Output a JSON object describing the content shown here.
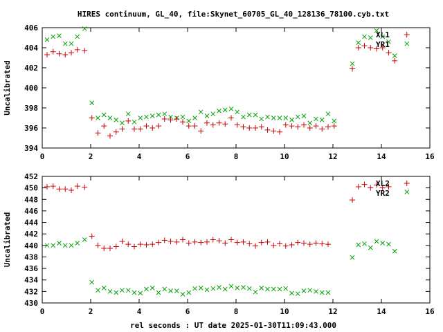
{
  "title": "HIRES continuum, GL_40, file:Skynet_60705_GL_40_128136_78100.cyb.txt",
  "xlabel": "rel seconds : UT date 2025-01-30T11:09:43.000",
  "colors": {
    "red": "#cc0000",
    "green": "#00a000"
  },
  "chart_data": [
    {
      "type": "scatter",
      "name": "top-panel",
      "ylabel": "Uncalibrated",
      "xlim": [
        0,
        16
      ],
      "ylim": [
        394,
        406
      ],
      "xticks": [
        "0",
        "2",
        "4",
        "6",
        "8",
        "10",
        "12",
        "14",
        "16"
      ],
      "yticks": [
        "394",
        "396",
        "398",
        "400",
        "402",
        "404",
        "406"
      ],
      "legend": "top-right",
      "series": [
        {
          "name": "XL1",
          "marker": "x",
          "color": "#00a000",
          "points": [
            [
              0.2,
              404.8
            ],
            [
              0.45,
              405.1
            ],
            [
              0.7,
              405.2
            ],
            [
              0.95,
              404.4
            ],
            [
              1.2,
              404.4
            ],
            [
              1.45,
              405.1
            ],
            [
              1.75,
              405.9
            ],
            [
              2.05,
              398.5
            ],
            [
              2.3,
              397.0
            ],
            [
              2.55,
              397.3
            ],
            [
              2.8,
              397.0
            ],
            [
              3.05,
              396.8
            ],
            [
              3.3,
              396.5
            ],
            [
              3.55,
              397.4
            ],
            [
              3.8,
              396.6
            ],
            [
              4.05,
              397.0
            ],
            [
              4.3,
              397.1
            ],
            [
              4.55,
              397.2
            ],
            [
              4.8,
              397.3
            ],
            [
              5.05,
              397.4
            ],
            [
              5.3,
              397.1
            ],
            [
              5.55,
              397.0
            ],
            [
              5.8,
              397.1
            ],
            [
              6.05,
              396.7
            ],
            [
              6.3,
              397.0
            ],
            [
              6.55,
              397.6
            ],
            [
              6.8,
              397.2
            ],
            [
              7.05,
              397.4
            ],
            [
              7.3,
              397.7
            ],
            [
              7.55,
              397.8
            ],
            [
              7.8,
              397.9
            ],
            [
              8.05,
              397.6
            ],
            [
              8.3,
              397.1
            ],
            [
              8.55,
              397.3
            ],
            [
              8.8,
              397.3
            ],
            [
              9.05,
              396.9
            ],
            [
              9.3,
              397.1
            ],
            [
              9.55,
              397.0
            ],
            [
              9.8,
              397.0
            ],
            [
              10.05,
              397.0
            ],
            [
              10.3,
              396.8
            ],
            [
              10.55,
              397.1
            ],
            [
              10.8,
              397.2
            ],
            [
              11.05,
              396.5
            ],
            [
              11.3,
              396.9
            ],
            [
              11.55,
              396.8
            ],
            [
              11.8,
              397.4
            ],
            [
              12.05,
              396.7
            ],
            [
              12.8,
              402.4
            ],
            [
              13.05,
              404.5
            ],
            [
              13.3,
              405.1
            ],
            [
              13.55,
              405.0
            ],
            [
              13.8,
              405.7
            ],
            [
              14.05,
              405.1
            ],
            [
              14.3,
              404.6
            ],
            [
              14.55,
              403.2
            ],
            [
              15.05,
              404.4
            ]
          ]
        },
        {
          "name": "YR1",
          "marker": "+",
          "color": "#cc0000",
          "points": [
            [
              0.2,
              403.3
            ],
            [
              0.45,
              403.6
            ],
            [
              0.7,
              403.4
            ],
            [
              0.95,
              403.3
            ],
            [
              1.2,
              403.5
            ],
            [
              1.45,
              403.8
            ],
            [
              1.75,
              403.7
            ],
            [
              2.05,
              397.0
            ],
            [
              2.3,
              395.5
            ],
            [
              2.55,
              396.2
            ],
            [
              2.8,
              395.2
            ],
            [
              3.05,
              395.6
            ],
            [
              3.3,
              395.9
            ],
            [
              3.55,
              396.7
            ],
            [
              3.8,
              395.9
            ],
            [
              4.05,
              395.9
            ],
            [
              4.3,
              396.2
            ],
            [
              4.55,
              396.0
            ],
            [
              4.8,
              396.2
            ],
            [
              5.05,
              396.9
            ],
            [
              5.3,
              396.8
            ],
            [
              5.55,
              396.9
            ],
            [
              5.8,
              396.6
            ],
            [
              6.05,
              396.2
            ],
            [
              6.3,
              396.2
            ],
            [
              6.55,
              395.7
            ],
            [
              6.8,
              396.5
            ],
            [
              7.05,
              396.3
            ],
            [
              7.3,
              396.5
            ],
            [
              7.55,
              396.4
            ],
            [
              7.8,
              397.0
            ],
            [
              8.05,
              396.3
            ],
            [
              8.3,
              396.1
            ],
            [
              8.55,
              396.0
            ],
            [
              8.8,
              396.0
            ],
            [
              9.05,
              396.1
            ],
            [
              9.3,
              395.8
            ],
            [
              9.55,
              395.7
            ],
            [
              9.8,
              395.6
            ],
            [
              10.05,
              396.3
            ],
            [
              10.3,
              396.2
            ],
            [
              10.55,
              396.1
            ],
            [
              10.8,
              396.3
            ],
            [
              11.05,
              396.0
            ],
            [
              11.3,
              396.2
            ],
            [
              11.55,
              395.9
            ],
            [
              11.8,
              396.1
            ],
            [
              12.05,
              396.2
            ],
            [
              12.8,
              401.9
            ],
            [
              13.05,
              404.0
            ],
            [
              13.3,
              404.2
            ],
            [
              13.55,
              404.0
            ],
            [
              13.8,
              403.9
            ],
            [
              14.05,
              404.0
            ],
            [
              14.3,
              403.5
            ],
            [
              14.55,
              402.7
            ],
            [
              15.05,
              405.3
            ]
          ]
        }
      ]
    },
    {
      "type": "scatter",
      "name": "bottom-panel",
      "ylabel": "Uncalibrated",
      "xlim": [
        0,
        16
      ],
      "ylim": [
        430,
        452
      ],
      "xticks": [
        "0",
        "2",
        "4",
        "6",
        "8",
        "10",
        "12",
        "14",
        "16"
      ],
      "yticks": [
        "430",
        "432",
        "434",
        "436",
        "438",
        "440",
        "442",
        "444",
        "446",
        "448",
        "450",
        "452"
      ],
      "legend": "top-right",
      "series": [
        {
          "name": "XL2",
          "marker": "+",
          "color": "#cc0000",
          "points": [
            [
              0.2,
              450.2
            ],
            [
              0.45,
              450.3
            ],
            [
              0.7,
              449.8
            ],
            [
              0.95,
              449.8
            ],
            [
              1.2,
              449.6
            ],
            [
              1.45,
              450.3
            ],
            [
              1.75,
              450.1
            ],
            [
              2.05,
              441.6
            ],
            [
              2.3,
              440.0
            ],
            [
              2.55,
              439.5
            ],
            [
              2.8,
              439.5
            ],
            [
              3.05,
              439.8
            ],
            [
              3.3,
              440.7
            ],
            [
              3.55,
              440.2
            ],
            [
              3.8,
              439.8
            ],
            [
              4.05,
              440.2
            ],
            [
              4.3,
              440.1
            ],
            [
              4.55,
              440.2
            ],
            [
              4.8,
              440.5
            ],
            [
              5.05,
              440.9
            ],
            [
              5.3,
              440.7
            ],
            [
              5.55,
              440.6
            ],
            [
              5.8,
              441.0
            ],
            [
              6.05,
              440.4
            ],
            [
              6.3,
              440.6
            ],
            [
              6.55,
              440.5
            ],
            [
              6.8,
              440.6
            ],
            [
              7.05,
              441.0
            ],
            [
              7.3,
              440.8
            ],
            [
              7.55,
              440.4
            ],
            [
              7.8,
              441.0
            ],
            [
              8.05,
              440.5
            ],
            [
              8.3,
              440.6
            ],
            [
              8.55,
              440.3
            ],
            [
              8.8,
              439.9
            ],
            [
              9.05,
              440.5
            ],
            [
              9.3,
              440.6
            ],
            [
              9.55,
              440.0
            ],
            [
              9.8,
              440.3
            ],
            [
              10.05,
              439.9
            ],
            [
              10.3,
              440.1
            ],
            [
              10.55,
              440.5
            ],
            [
              10.8,
              440.4
            ],
            [
              11.05,
              440.2
            ],
            [
              11.3,
              440.4
            ],
            [
              11.55,
              440.3
            ],
            [
              11.8,
              440.2
            ],
            [
              12.8,
              447.9
            ],
            [
              13.05,
              450.2
            ],
            [
              13.3,
              450.6
            ],
            [
              13.55,
              450.0
            ],
            [
              13.8,
              450.5
            ],
            [
              14.05,
              450.0
            ],
            [
              14.3,
              450.2
            ],
            [
              15.05,
              450.8
            ]
          ]
        },
        {
          "name": "YR2",
          "marker": "x",
          "color": "#00a000",
          "points": [
            [
              0.2,
              440.0
            ],
            [
              0.45,
              440.0
            ],
            [
              0.7,
              440.4
            ],
            [
              0.95,
              440.0
            ],
            [
              1.2,
              440.0
            ],
            [
              1.45,
              440.4
            ],
            [
              1.75,
              441.0
            ],
            [
              2.05,
              433.6
            ],
            [
              2.3,
              432.2
            ],
            [
              2.55,
              432.6
            ],
            [
              2.8,
              432.0
            ],
            [
              3.05,
              431.8
            ],
            [
              3.3,
              432.2
            ],
            [
              3.55,
              432.2
            ],
            [
              3.8,
              431.8
            ],
            [
              4.05,
              431.7
            ],
            [
              4.3,
              432.4
            ],
            [
              4.55,
              432.6
            ],
            [
              4.8,
              431.8
            ],
            [
              5.05,
              432.4
            ],
            [
              5.3,
              432.1
            ],
            [
              5.55,
              432.1
            ],
            [
              5.8,
              431.5
            ],
            [
              6.05,
              431.8
            ],
            [
              6.3,
              432.5
            ],
            [
              6.55,
              432.6
            ],
            [
              6.8,
              432.3
            ],
            [
              7.05,
              432.5
            ],
            [
              7.3,
              432.7
            ],
            [
              7.55,
              432.4
            ],
            [
              7.8,
              432.9
            ],
            [
              8.05,
              432.6
            ],
            [
              8.3,
              432.7
            ],
            [
              8.55,
              432.5
            ],
            [
              8.8,
              431.9
            ],
            [
              9.05,
              432.6
            ],
            [
              9.3,
              432.4
            ],
            [
              9.55,
              432.4
            ],
            [
              9.8,
              432.4
            ],
            [
              10.05,
              432.5
            ],
            [
              10.3,
              431.7
            ],
            [
              10.55,
              431.6
            ],
            [
              10.8,
              432.1
            ],
            [
              11.05,
              432.2
            ],
            [
              11.3,
              432.0
            ],
            [
              11.55,
              431.8
            ],
            [
              11.8,
              431.8
            ],
            [
              12.8,
              437.9
            ],
            [
              13.05,
              440.1
            ],
            [
              13.3,
              440.3
            ],
            [
              13.55,
              439.6
            ],
            [
              13.8,
              440.7
            ],
            [
              14.05,
              440.4
            ],
            [
              14.3,
              440.2
            ],
            [
              14.55,
              439.0
            ],
            [
              15.05,
              449.3
            ]
          ]
        }
      ]
    }
  ]
}
